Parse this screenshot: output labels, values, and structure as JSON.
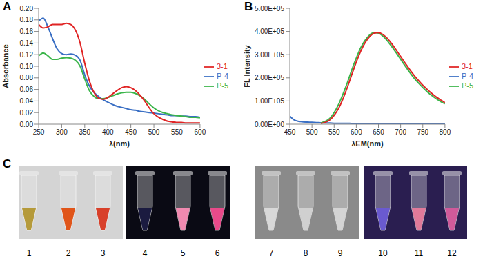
{
  "chart_data": [
    {
      "type": "line",
      "panel": "A",
      "x_label": "λ(nm)",
      "y_label": "Absorbance",
      "x": [
        250,
        260,
        270,
        280,
        290,
        300,
        310,
        320,
        330,
        340,
        350,
        360,
        370,
        380,
        390,
        400,
        410,
        420,
        430,
        440,
        450,
        460,
        470,
        480,
        490,
        500,
        510,
        520,
        530,
        540,
        550,
        560,
        570,
        580,
        590,
        600
      ],
      "series": [
        {
          "name": "P-4",
          "color": "#3a6fc4",
          "values": [
            0.178,
            0.183,
            0.168,
            0.148,
            0.13,
            0.122,
            0.12,
            0.121,
            0.119,
            0.11,
            0.085,
            0.066,
            0.055,
            0.048,
            0.042,
            0.038,
            0.034,
            0.031,
            0.029,
            0.027,
            0.025,
            0.024,
            0.022,
            0.021,
            0.02,
            0.019,
            0.018,
            0.017,
            0.016,
            0.015,
            0.015,
            0.014,
            0.014,
            0.013,
            0.013,
            0.012
          ]
        },
        {
          "name": "P-5",
          "color": "#3bb54a",
          "values": [
            0.118,
            0.123,
            0.118,
            0.112,
            0.112,
            0.114,
            0.115,
            0.114,
            0.11,
            0.1,
            0.078,
            0.058,
            0.048,
            0.044,
            0.044,
            0.046,
            0.049,
            0.052,
            0.054,
            0.055,
            0.055,
            0.053,
            0.049,
            0.043,
            0.035,
            0.028,
            0.023,
            0.02,
            0.018,
            0.016,
            0.015,
            0.014,
            0.013,
            0.012,
            0.012,
            0.011
          ]
        },
        {
          "name": "3-1",
          "color": "#e02424",
          "values": [
            0.172,
            0.166,
            0.168,
            0.172,
            0.172,
            0.172,
            0.174,
            0.172,
            0.162,
            0.14,
            0.105,
            0.075,
            0.055,
            0.045,
            0.043,
            0.046,
            0.052,
            0.058,
            0.063,
            0.065,
            0.063,
            0.058,
            0.05,
            0.04,
            0.028,
            0.018,
            0.012,
            0.008,
            0.005,
            0.004,
            0.003,
            0.003,
            0.002,
            0.002,
            0.002,
            0.002
          ]
        }
      ],
      "xlim": [
        250,
        600
      ],
      "xticks": [
        250,
        300,
        350,
        400,
        450,
        500,
        550,
        600
      ],
      "ylim": [
        0,
        0.2
      ],
      "yticks": [
        {
          "value": 0,
          "label": "0.00"
        },
        {
          "value": 0.02,
          "label": "0.02"
        },
        {
          "value": 0.04,
          "label": "0.04"
        },
        {
          "value": 0.06,
          "label": "0.06"
        },
        {
          "value": 0.08,
          "label": "0.08"
        },
        {
          "value": 0.1,
          "label": "0.10"
        },
        {
          "value": 0.12,
          "label": "0.12"
        },
        {
          "value": 0.14,
          "label": "0.14"
        },
        {
          "value": 0.16,
          "label": "0.16"
        },
        {
          "value": 0.18,
          "label": "0.18"
        },
        {
          "value": 0.2,
          "label": "0.20"
        }
      ],
      "legend": "right",
      "grid": false
    },
    {
      "type": "line",
      "panel": "B",
      "x_label": "λEM(nm)",
      "y_label": "FL Intensity",
      "x": [
        450,
        460,
        470,
        480,
        490,
        500,
        510,
        520,
        530,
        540,
        550,
        560,
        570,
        580,
        590,
        600,
        610,
        620,
        630,
        640,
        650,
        660,
        670,
        680,
        690,
        700,
        710,
        720,
        730,
        740,
        750,
        760,
        770,
        780,
        790,
        800
      ],
      "series": [
        {
          "name": "P-4",
          "color": "#3a6fc4",
          "values": [
            35000,
            18000,
            12000,
            10000,
            9000,
            8000,
            7000,
            6000,
            5000,
            5000,
            4000,
            4000,
            4000,
            4000,
            3000,
            3000,
            3000,
            3000,
            3000,
            3000,
            3000,
            3000,
            3000,
            3000,
            3000,
            3000,
            3000,
            3000,
            3000,
            3000,
            3000,
            3000,
            3000,
            3000,
            3000,
            3000
          ]
        },
        {
          "name": "P-5",
          "color": "#3bb54a",
          "values": [
            null,
            null,
            null,
            null,
            null,
            null,
            null,
            5000,
            12000,
            25000,
            50000,
            85000,
            130000,
            180000,
            235000,
            285000,
            330000,
            362000,
            385000,
            395000,
            393000,
            380000,
            360000,
            335000,
            308000,
            280000,
            252000,
            225000,
            200000,
            178000,
            158000,
            140000,
            124000,
            110000,
            98000,
            88000
          ]
        },
        {
          "name": "3-1",
          "color": "#e02424",
          "values": [
            null,
            null,
            null,
            null,
            null,
            null,
            null,
            3000,
            8000,
            18000,
            38000,
            68000,
            110000,
            160000,
            215000,
            268000,
            315000,
            352000,
            378000,
            392000,
            395000,
            387000,
            370000,
            347000,
            320000,
            292000,
            264000,
            237000,
            212000,
            189000,
            168000,
            150000,
            133000,
            118000,
            105000,
            93000
          ]
        }
      ],
      "xlim": [
        450,
        800
      ],
      "xticks": [
        450,
        500,
        550,
        600,
        650,
        700,
        750,
        800
      ],
      "ylim": [
        0,
        500000
      ],
      "yticks": [
        {
          "value": 0,
          "label": "0.00E+00"
        },
        {
          "value": 100000,
          "label": "1.00E+05"
        },
        {
          "value": 200000,
          "label": "2.00E+05"
        },
        {
          "value": 300000,
          "label": "3.00E+05"
        },
        {
          "value": 400000,
          "label": "4.00E+05"
        },
        {
          "value": 500000,
          "label": "5.00E+05"
        }
      ],
      "legend": "right",
      "grid": false
    }
  ],
  "photo_panel": {
    "panel": "C",
    "labels": [
      "1",
      "2",
      "3",
      "4",
      "5",
      "6",
      "7",
      "8",
      "9",
      "10",
      "11",
      "12"
    ]
  }
}
